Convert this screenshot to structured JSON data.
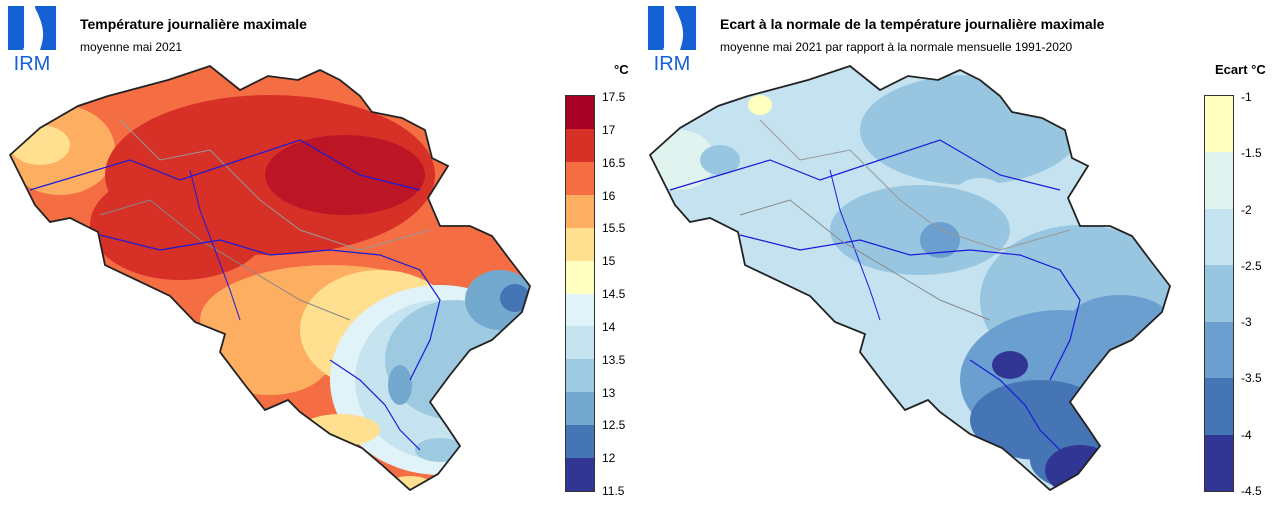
{
  "left_panel": {
    "logo_text": "IRM",
    "title": "Température journalière maximale",
    "subtitle": "moyenne mai 2021",
    "unit": "°C",
    "legend_labels": [
      "17.5",
      "17",
      "16.5",
      "16",
      "15.5",
      "15",
      "14.5",
      "14",
      "13.5",
      "13",
      "12.5",
      "12",
      "11.5"
    ],
    "legend_colors": [
      "#a50026",
      "#d73027",
      "#f46d43",
      "#fdae61",
      "#fee090",
      "#ffffbf",
      "#e0f3f8",
      "#c6e3f0",
      "#9ecae1",
      "#74a9cf",
      "#4575b4",
      "#313695"
    ]
  },
  "right_panel": {
    "logo_text": "IRM",
    "title": "Ecart à la normale de la température journalière maximale",
    "subtitle": "moyenne mai 2021 par rapport à la normale mensuelle 1991-2020",
    "unit": "Ecart  °C",
    "legend_labels": [
      "-1",
      "-1.5",
      "-2",
      "-2.5",
      "-3",
      "-3.5",
      "-4",
      "-4.5"
    ],
    "legend_colors": [
      "#ffffc0",
      "#e0f3ee",
      "#c4e2ef",
      "#98c6e0",
      "#6a9fcf",
      "#4575b4",
      "#313695"
    ]
  }
}
